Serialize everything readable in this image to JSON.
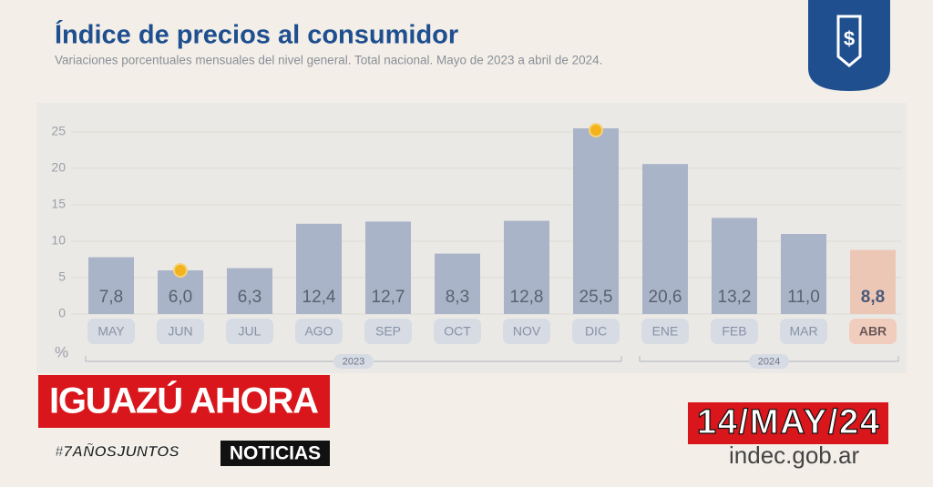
{
  "chart_data": {
    "type": "bar",
    "title": "Índice de precios al consumidor",
    "subtitle": "Variaciones porcentuales mensuales del nivel general. Total nacional. Mayo de 2023 a abril de 2024.",
    "y_label": "%",
    "categories": [
      "MAY",
      "JUN",
      "JUL",
      "AGO",
      "SEP",
      "OCT",
      "NOV",
      "DIC",
      "ENE",
      "FEB",
      "MAR",
      "ABR"
    ],
    "values": [
      7.8,
      6.0,
      6.3,
      12.4,
      12.7,
      8.3,
      12.8,
      25.5,
      20.6,
      13.2,
      11.0,
      8.8
    ],
    "value_labels": [
      "7,8",
      "6,0",
      "6,3",
      "12,4",
      "12,7",
      "8,3",
      "12,8",
      "25,5",
      "20,6",
      "13,2",
      "11,0",
      "8,8"
    ],
    "colors": [
      "#a9b4c8",
      "#a9b4c8",
      "#a9b4c8",
      "#a9b4c8",
      "#a9b4c8",
      "#a9b4c8",
      "#a9b4c8",
      "#a9b4c8",
      "#a9b4c8",
      "#a9b4c8",
      "#a9b4c8",
      "#ecc7b6"
    ],
    "mark_extremes": true,
    "x_groups": [
      {
        "label": "2023",
        "span": 8
      },
      {
        "label": "2024",
        "span": 4
      }
    ],
    "ylim": [
      0,
      28
    ],
    "yticks": [
      0,
      5,
      10,
      15,
      20,
      25
    ],
    "grid": true
  },
  "overlay": {
    "brand": "IGUAZÚ AHORA",
    "hashtag": "#7AÑOSJUNTOS",
    "section": "NOTICIAS",
    "date": "14/MAY/24",
    "source": "indec.gob.ar"
  }
}
